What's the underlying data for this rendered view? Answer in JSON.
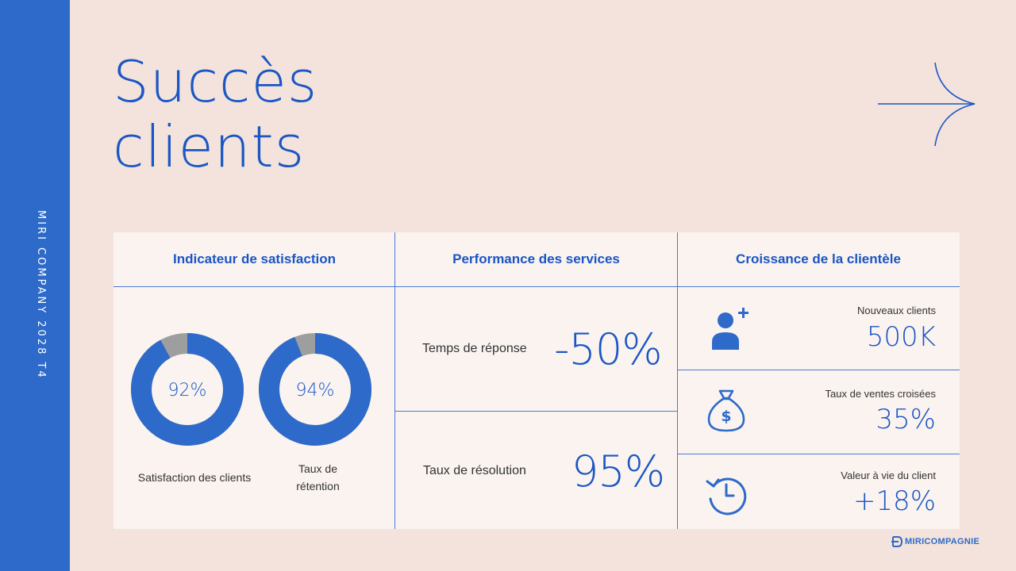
{
  "sidebar": {
    "text": "MIRI COMPANY 2028 T4"
  },
  "title": {
    "line1": "Succès",
    "line2": "clients"
  },
  "columns": [
    {
      "heading": "Indicateur de satisfaction"
    },
    {
      "heading": "Performance des services"
    },
    {
      "heading": "Croissance de la clientèle"
    }
  ],
  "satisfaction": {
    "donuts": [
      {
        "value_text": "92%",
        "percent": 92,
        "label": "Satisfaction des clients"
      },
      {
        "value_text": "94%",
        "percent": 94,
        "label_line1": "Taux de",
        "label_line2": "rétention"
      }
    ]
  },
  "performance": [
    {
      "label": "Temps de réponse",
      "value": "-50%"
    },
    {
      "label": "Taux de résolution",
      "value": "95%"
    }
  ],
  "growth": [
    {
      "icon": "user-plus-icon",
      "label": "Nouveaux clients",
      "value": "500K"
    },
    {
      "icon": "money-bag-icon",
      "label": "Taux de ventes croisées",
      "value": "35%"
    },
    {
      "icon": "clock-history-icon",
      "label": "Valeur à vie du client",
      "value": "+18%"
    }
  ],
  "logo": {
    "text": "MIRICOMPAGNIE"
  },
  "colors": {
    "accent": "#2d6ac9",
    "text_accent": "#1a56c4",
    "background": "#f3e3dc",
    "panel": "#faf3f0",
    "donut_rest": "#9e9e9e"
  }
}
